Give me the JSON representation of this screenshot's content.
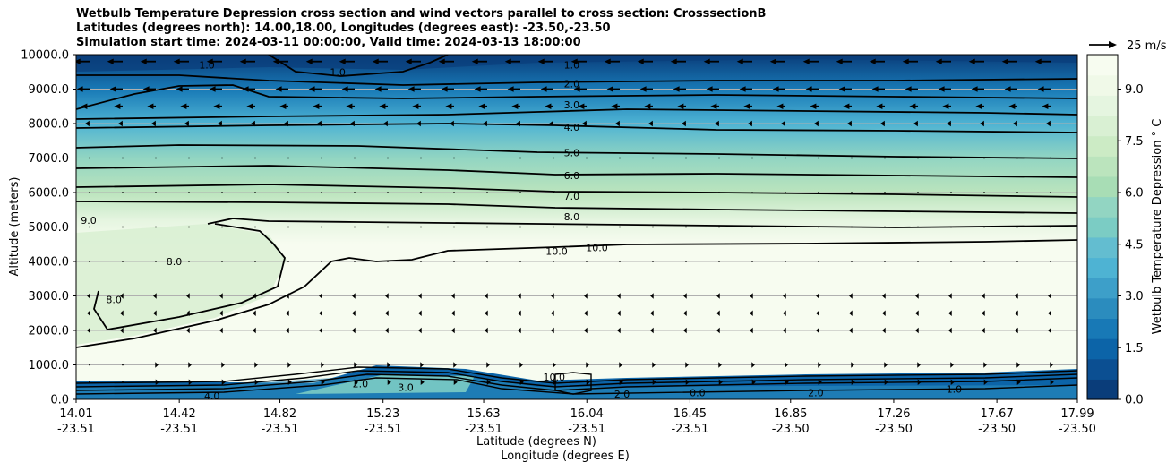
{
  "chart_data": {
    "type": "heatmap",
    "title_lines": [
      "Wetbulb Temperature Depression cross section and wind vectors parallel to cross section: CrosssectionB",
      "Latitudes (degrees north): 14.00,18.00, Longitudes (degrees east): -23.50,-23.50",
      "Simulation start time: 2024-03-11 00:00:00, Valid time: 2024-03-13 18:00:00"
    ],
    "ylabel": "Altitude (meters)",
    "xlabel_lat": "Latitude (degrees N)",
    "xlabel_lon": "Longitude (degrees E)",
    "ylim": [
      0,
      10000
    ],
    "y_ticks": [
      "0.0",
      "1000.0",
      "2000.0",
      "3000.0",
      "4000.0",
      "5000.0",
      "6000.0",
      "7000.0",
      "8000.0",
      "9000.0",
      "10000.0"
    ],
    "y_tick_values": [
      0,
      1000,
      2000,
      3000,
      4000,
      5000,
      6000,
      7000,
      8000,
      9000,
      10000
    ],
    "xlim": [
      14.01,
      17.99
    ],
    "x_ticks_lat": [
      "14.01",
      "14.42",
      "14.82",
      "15.23",
      "15.63",
      "16.04",
      "16.45",
      "16.85",
      "17.26",
      "17.67",
      "17.99"
    ],
    "x_ticks_lon": [
      "-23.51",
      "-23.51",
      "-23.51",
      "-23.51",
      "-23.51",
      "-23.51",
      "-23.51",
      "-23.50",
      "-23.50",
      "-23.50",
      "-23.50"
    ],
    "x_tick_values": [
      14.01,
      14.42,
      14.82,
      15.23,
      15.63,
      16.04,
      16.45,
      16.85,
      17.26,
      17.67,
      17.99
    ],
    "colorbar": {
      "label": "Wetbulb Temperature Depression $^\\circ$C",
      "ticks": [
        "0.0",
        "1.5",
        "3.0",
        "4.5",
        "6.0",
        "7.5",
        "9.0"
      ],
      "tick_values": [
        0,
        1.5,
        3,
        4.5,
        6,
        7.5,
        9
      ],
      "range": [
        0,
        10
      ],
      "colors": [
        "#0a3d7a",
        "#0b4f92",
        "#0c64a8",
        "#1879b6",
        "#2b8cbe",
        "#3d9fc9",
        "#4eb3d3",
        "#63bdd0",
        "#7bccc4",
        "#92d5c2",
        "#a8ddb5",
        "#bbe4bd",
        "#ccebc5",
        "#d9f0d3",
        "#e5f5e0",
        "#f0f9e8",
        "#f7fcf0"
      ]
    },
    "wind_key_label": "25 m/s",
    "temperature_depression_profile": [
      {
        "altitude": 0,
        "value": 1.5
      },
      {
        "altitude": 500,
        "value": 10.0
      },
      {
        "altitude": 2000,
        "value": 10.0
      },
      {
        "altitude": 4500,
        "value": 10.0
      },
      {
        "altitude": 5200,
        "value": 8.5
      },
      {
        "altitude": 6000,
        "value": 7.0
      },
      {
        "altitude": 7000,
        "value": 5.5
      },
      {
        "altitude": 8000,
        "value": 4.0
      },
      {
        "altitude": 9000,
        "value": 2.0
      },
      {
        "altitude": 10000,
        "value": 0.5
      }
    ],
    "contour_labels": [
      {
        "text": "1.0",
        "lat": 15.98,
        "alt": 9700
      },
      {
        "text": "2.0",
        "lat": 15.98,
        "alt": 9150
      },
      {
        "text": "3.0",
        "lat": 15.98,
        "alt": 8550
      },
      {
        "text": "4.0",
        "lat": 15.98,
        "alt": 7900
      },
      {
        "text": "5.0",
        "lat": 15.98,
        "alt": 7150
      },
      {
        "text": "6.0",
        "lat": 15.98,
        "alt": 6500
      },
      {
        "text": "7.0",
        "lat": 15.98,
        "alt": 5900
      },
      {
        "text": "8.0",
        "lat": 15.98,
        "alt": 5300
      },
      {
        "text": "10.0",
        "lat": 15.92,
        "alt": 4300
      },
      {
        "text": "10.0",
        "lat": 16.08,
        "alt": 4400
      },
      {
        "text": "9.0",
        "lat": 14.06,
        "alt": 5200
      },
      {
        "text": "8.0",
        "lat": 14.4,
        "alt": 4000
      },
      {
        "text": "8.0",
        "lat": 14.16,
        "alt": 2900
      },
      {
        "text": "1.0",
        "lat": 14.53,
        "alt": 9700
      },
      {
        "text": "1.0",
        "lat": 15.05,
        "alt": 9500
      },
      {
        "text": "10.0",
        "lat": 15.91,
        "alt": 650
      },
      {
        "text": "2.0",
        "lat": 16.18,
        "alt": 150
      },
      {
        "text": "2.0",
        "lat": 16.95,
        "alt": 200
      },
      {
        "text": "3.0",
        "lat": 15.32,
        "alt": 350
      },
      {
        "text": "2.0",
        "lat": 15.14,
        "alt": 450
      },
      {
        "text": "0.0",
        "lat": 16.48,
        "alt": 200
      },
      {
        "text": "1.0",
        "lat": 17.5,
        "alt": 300
      },
      {
        "text": "4.0",
        "lat": 14.55,
        "alt": 100
      }
    ],
    "wind_vectors_parallel_ms": [
      {
        "altitude": 9800,
        "u": -18
      },
      {
        "altitude": 9000,
        "u": -15
      },
      {
        "altitude": 8500,
        "u": -10
      },
      {
        "altitude": 8000,
        "u": -5
      },
      {
        "altitude": 7000,
        "u": -1
      },
      {
        "altitude": 6000,
        "u": -1
      },
      {
        "altitude": 5000,
        "u": -1
      },
      {
        "altitude": 4000,
        "u": -2
      },
      {
        "altitude": 3000,
        "u": -3
      },
      {
        "altitude": 2500,
        "u": -3
      },
      {
        "altitude": 2000,
        "u": -3
      },
      {
        "altitude": 1000,
        "u": 3
      },
      {
        "altitude": 500,
        "u": 4
      }
    ]
  }
}
